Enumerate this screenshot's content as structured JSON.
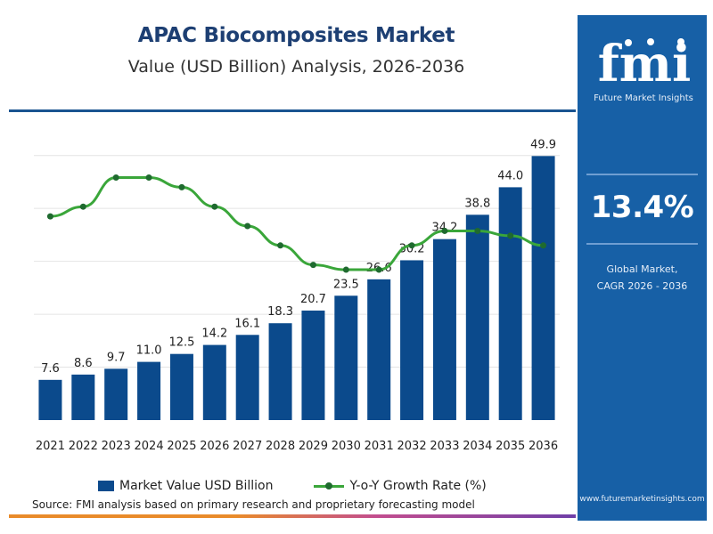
{
  "header": {
    "title": "APAC Biocomposites Market",
    "subtitle": "Value (USD Billion) Analysis, 2026-2036"
  },
  "chart_data": {
    "type": "bar",
    "categories": [
      "2021",
      "2022",
      "2023",
      "2024",
      "2025",
      "2026",
      "2027",
      "2028",
      "2029",
      "2030",
      "2031",
      "2032",
      "2033",
      "2034",
      "2035",
      "2036"
    ],
    "series": [
      {
        "name": "Market Value USD Billion",
        "type": "bar",
        "color": "#0b4a8c",
        "values": [
          7.6,
          8.6,
          9.7,
          11.0,
          12.5,
          14.2,
          16.1,
          18.3,
          20.7,
          23.5,
          26.6,
          30.2,
          34.2,
          38.8,
          44.0,
          49.9
        ],
        "labels": [
          "7.6",
          "8.6",
          "9.7",
          "11.0",
          "12.5",
          "14.2",
          "16.1",
          "18.3",
          "20.7",
          "23.5",
          "26.6",
          "30.2",
          "34.2",
          "38.8",
          "44.0",
          "49.9"
        ]
      },
      {
        "name": "Y-o-Y Growth Rate (%)",
        "type": "line",
        "color": "#3aa63a",
        "marker_color": "#1f6a2f",
        "values": [
          13.1,
          13.2,
          13.5,
          13.5,
          13.4,
          13.2,
          13.0,
          12.8,
          12.6,
          12.55,
          12.55,
          12.8,
          12.95,
          12.95,
          12.9,
          12.8
        ]
      }
    ],
    "xlabel": "",
    "ylabel": "",
    "ylim": [
      0,
      55
    ],
    "y2lim": [
      11.0,
      14.0
    ],
    "grid": true,
    "legend": "bottom"
  },
  "legend": {
    "bar_label": "Market Value USD Billion",
    "line_label": "Y-o-Y Growth Rate (%)"
  },
  "source": "Source: FMI analysis based on primary research and proprietary forecasting model",
  "sidebar": {
    "logo_letters": "fmi",
    "logo_text": "Future Market Insights",
    "cagr_value": "13.4%",
    "cagr_label_line1": "Global Market,",
    "cagr_label_line2": "CAGR 2026 - 2036",
    "url": "www.futuremarketinsights.com"
  },
  "colors": {
    "bar": "#0b4a8c",
    "line": "#3aa63a",
    "sidebar": "#1760a6",
    "title": "#1d3f73"
  }
}
